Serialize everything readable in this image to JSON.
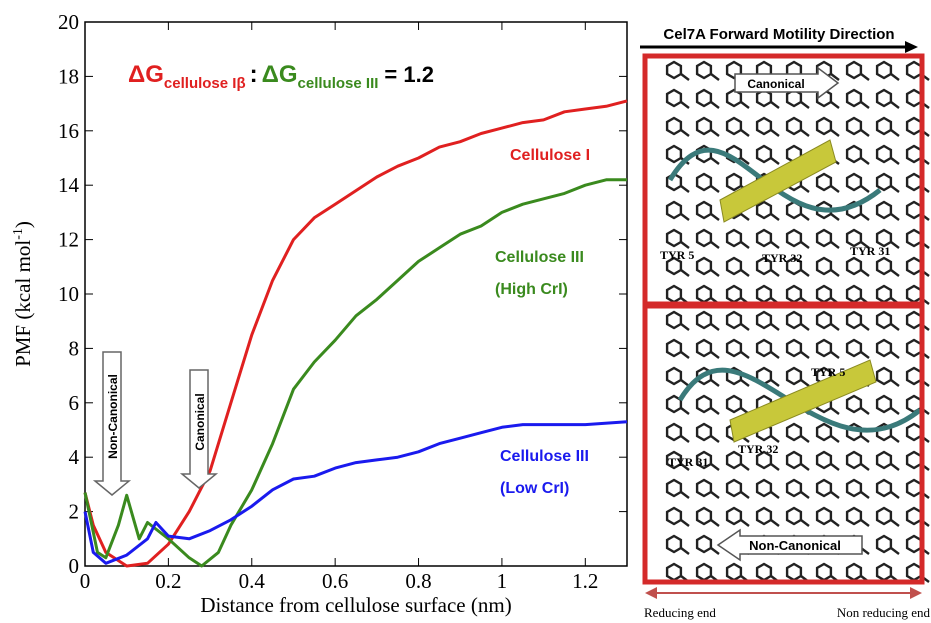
{
  "chart_data": {
    "type": "line",
    "annotation_title": {
      "parts": [
        "ΔG",
        "cellulose Iβ",
        ":",
        "ΔG",
        "cellulose III",
        "= 1.2"
      ]
    },
    "x_label": "Distance from cellulose surface (nm)",
    "y_label": {
      "text": "PMF (kcal mol",
      "superscript": "-1",
      "close": ")"
    },
    "xlim": [
      0,
      1.3
    ],
    "ylim": [
      0,
      20
    ],
    "xticks": [
      0,
      0.2,
      0.4,
      0.6,
      0.8,
      1,
      1.2
    ],
    "yticks": [
      0,
      2,
      4,
      6,
      8,
      10,
      12,
      14,
      16,
      18,
      20
    ],
    "arrows": [
      "Non-Canonical",
      "Canonical"
    ],
    "series": [
      {
        "name": "Cellulose I",
        "color": "#e02020",
        "x": [
          0,
          0.02,
          0.05,
          0.1,
          0.15,
          0.2,
          0.25,
          0.3,
          0.35,
          0.4,
          0.45,
          0.5,
          0.55,
          0.6,
          0.65,
          0.7,
          0.75,
          0.8,
          0.85,
          0.9,
          0.95,
          1.0,
          1.05,
          1.1,
          1.15,
          1.2,
          1.25,
          1.3
        ],
        "values": [
          2.7,
          1.5,
          0.5,
          0,
          0.1,
          0.8,
          2,
          3.5,
          6,
          8.5,
          10.5,
          12,
          12.8,
          13.3,
          13.8,
          14.3,
          14.7,
          15,
          15.4,
          15.6,
          15.9,
          16.1,
          16.3,
          16.4,
          16.7,
          16.8,
          16.9,
          17.1
        ]
      },
      {
        "name": "Cellulose III",
        "note": "(High CrI)",
        "color": "#3a8a1e",
        "x": [
          0,
          0.03,
          0.05,
          0.08,
          0.1,
          0.13,
          0.15,
          0.2,
          0.25,
          0.28,
          0.32,
          0.35,
          0.4,
          0.45,
          0.5,
          0.55,
          0.6,
          0.65,
          0.7,
          0.75,
          0.8,
          0.85,
          0.9,
          0.95,
          1.0,
          1.05,
          1.1,
          1.15,
          1.2,
          1.25,
          1.3
        ],
        "values": [
          2.7,
          0.5,
          0.3,
          1.5,
          2.6,
          1.0,
          1.6,
          1.0,
          0.3,
          0,
          0.5,
          1.5,
          2.8,
          4.5,
          6.5,
          7.5,
          8.3,
          9.2,
          9.8,
          10.5,
          11.2,
          11.7,
          12.2,
          12.5,
          13,
          13.3,
          13.5,
          13.7,
          14,
          14.2,
          14.2
        ]
      },
      {
        "name": "Cellulose III",
        "note": "(Low CrI)",
        "color": "#1a1aee",
        "x": [
          0,
          0.02,
          0.05,
          0.1,
          0.15,
          0.17,
          0.2,
          0.25,
          0.3,
          0.35,
          0.4,
          0.45,
          0.5,
          0.55,
          0.6,
          0.65,
          0.7,
          0.75,
          0.8,
          0.85,
          0.9,
          0.95,
          1.0,
          1.05,
          1.1,
          1.2,
          1.3
        ],
        "values": [
          2,
          0.5,
          0.1,
          0.4,
          1.0,
          1.6,
          1.1,
          1.0,
          1.3,
          1.7,
          2.2,
          2.8,
          3.2,
          3.3,
          3.6,
          3.8,
          3.9,
          4.0,
          4.2,
          4.5,
          4.7,
          4.9,
          5.1,
          5.2,
          5.2,
          5.2,
          5.3
        ]
      }
    ]
  },
  "panel": {
    "header": "Cel7A Forward Motility Direction",
    "top": {
      "arrow": "Canonical",
      "residues": [
        "TYR 5",
        "TYR 32",
        "TYR 31"
      ]
    },
    "bottom": {
      "arrow": "Non-Canonical",
      "residues": [
        "TYR 5",
        "TYR 31",
        "TYR 32"
      ]
    },
    "footer": [
      "Reducing end",
      "Non reducing end"
    ]
  }
}
